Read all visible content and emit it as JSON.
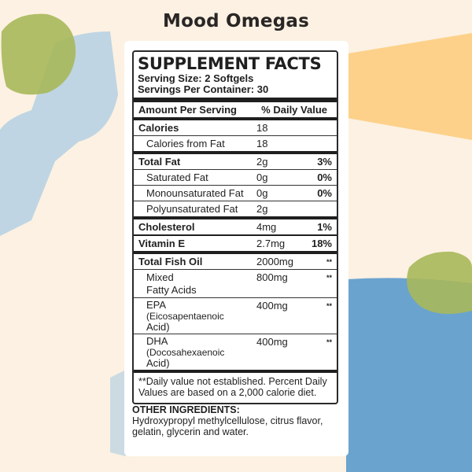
{
  "page": {
    "title": "Mood Omegas"
  },
  "colors": {
    "background": "#fcf1e2",
    "green": "#a7b85a",
    "blue_light": "#b8d1e3",
    "blue": "#6ba3cf",
    "orange": "#fdd18a"
  },
  "facts": {
    "heading": "SUPPLEMENT FACTS",
    "serving_size": "Serving Size: 2 Softgels",
    "servings_per_container": "Servings Per Container: 30",
    "col_amount": "Amount Per Serving",
    "col_dv": "% Daily Value",
    "rows": [
      {
        "name": "Calories",
        "amount": "18",
        "dv": ""
      },
      {
        "name": "Calories from Fat",
        "amount": "18",
        "dv": ""
      },
      {
        "name": "Total Fat",
        "amount": "2g",
        "dv": "3%"
      },
      {
        "name": "Saturated Fat",
        "amount": "0g",
        "dv": "0%"
      },
      {
        "name": "Monounsaturated Fat",
        "amount": "0g",
        "dv": "0%"
      },
      {
        "name": "Polyunsaturated Fat",
        "amount": "2g",
        "dv": ""
      },
      {
        "name": "Cholesterol",
        "amount": "4mg",
        "dv": "1%"
      },
      {
        "name": "Vitamin E",
        "amount": "2.7mg",
        "dv": "18%"
      },
      {
        "name": "Total Fish Oil",
        "amount": "2000mg",
        "dv": "**"
      },
      {
        "name_l1": "Mixed",
        "name_l2": "Fatty Acids",
        "amount": "800mg",
        "dv": "**"
      },
      {
        "name_l1": "EPA",
        "name_l2": "(Eicosapentaenoic",
        "name_l3": "Acid)",
        "amount": "400mg",
        "dv": "**"
      },
      {
        "name_l1": "DHA",
        "name_l2": "(Docosahexaenoic",
        "name_l3": "Acid)",
        "amount": "400mg",
        "dv": "**"
      }
    ],
    "footnote": "**Daily value not established. Percent Daily Values are based on a 2,000 calorie diet."
  },
  "other": {
    "label": "OTHER INGREDIENTS:",
    "text": "Hydroxypropyl methylcellulose, citrus flavor, gelatin, glycerin and water."
  }
}
